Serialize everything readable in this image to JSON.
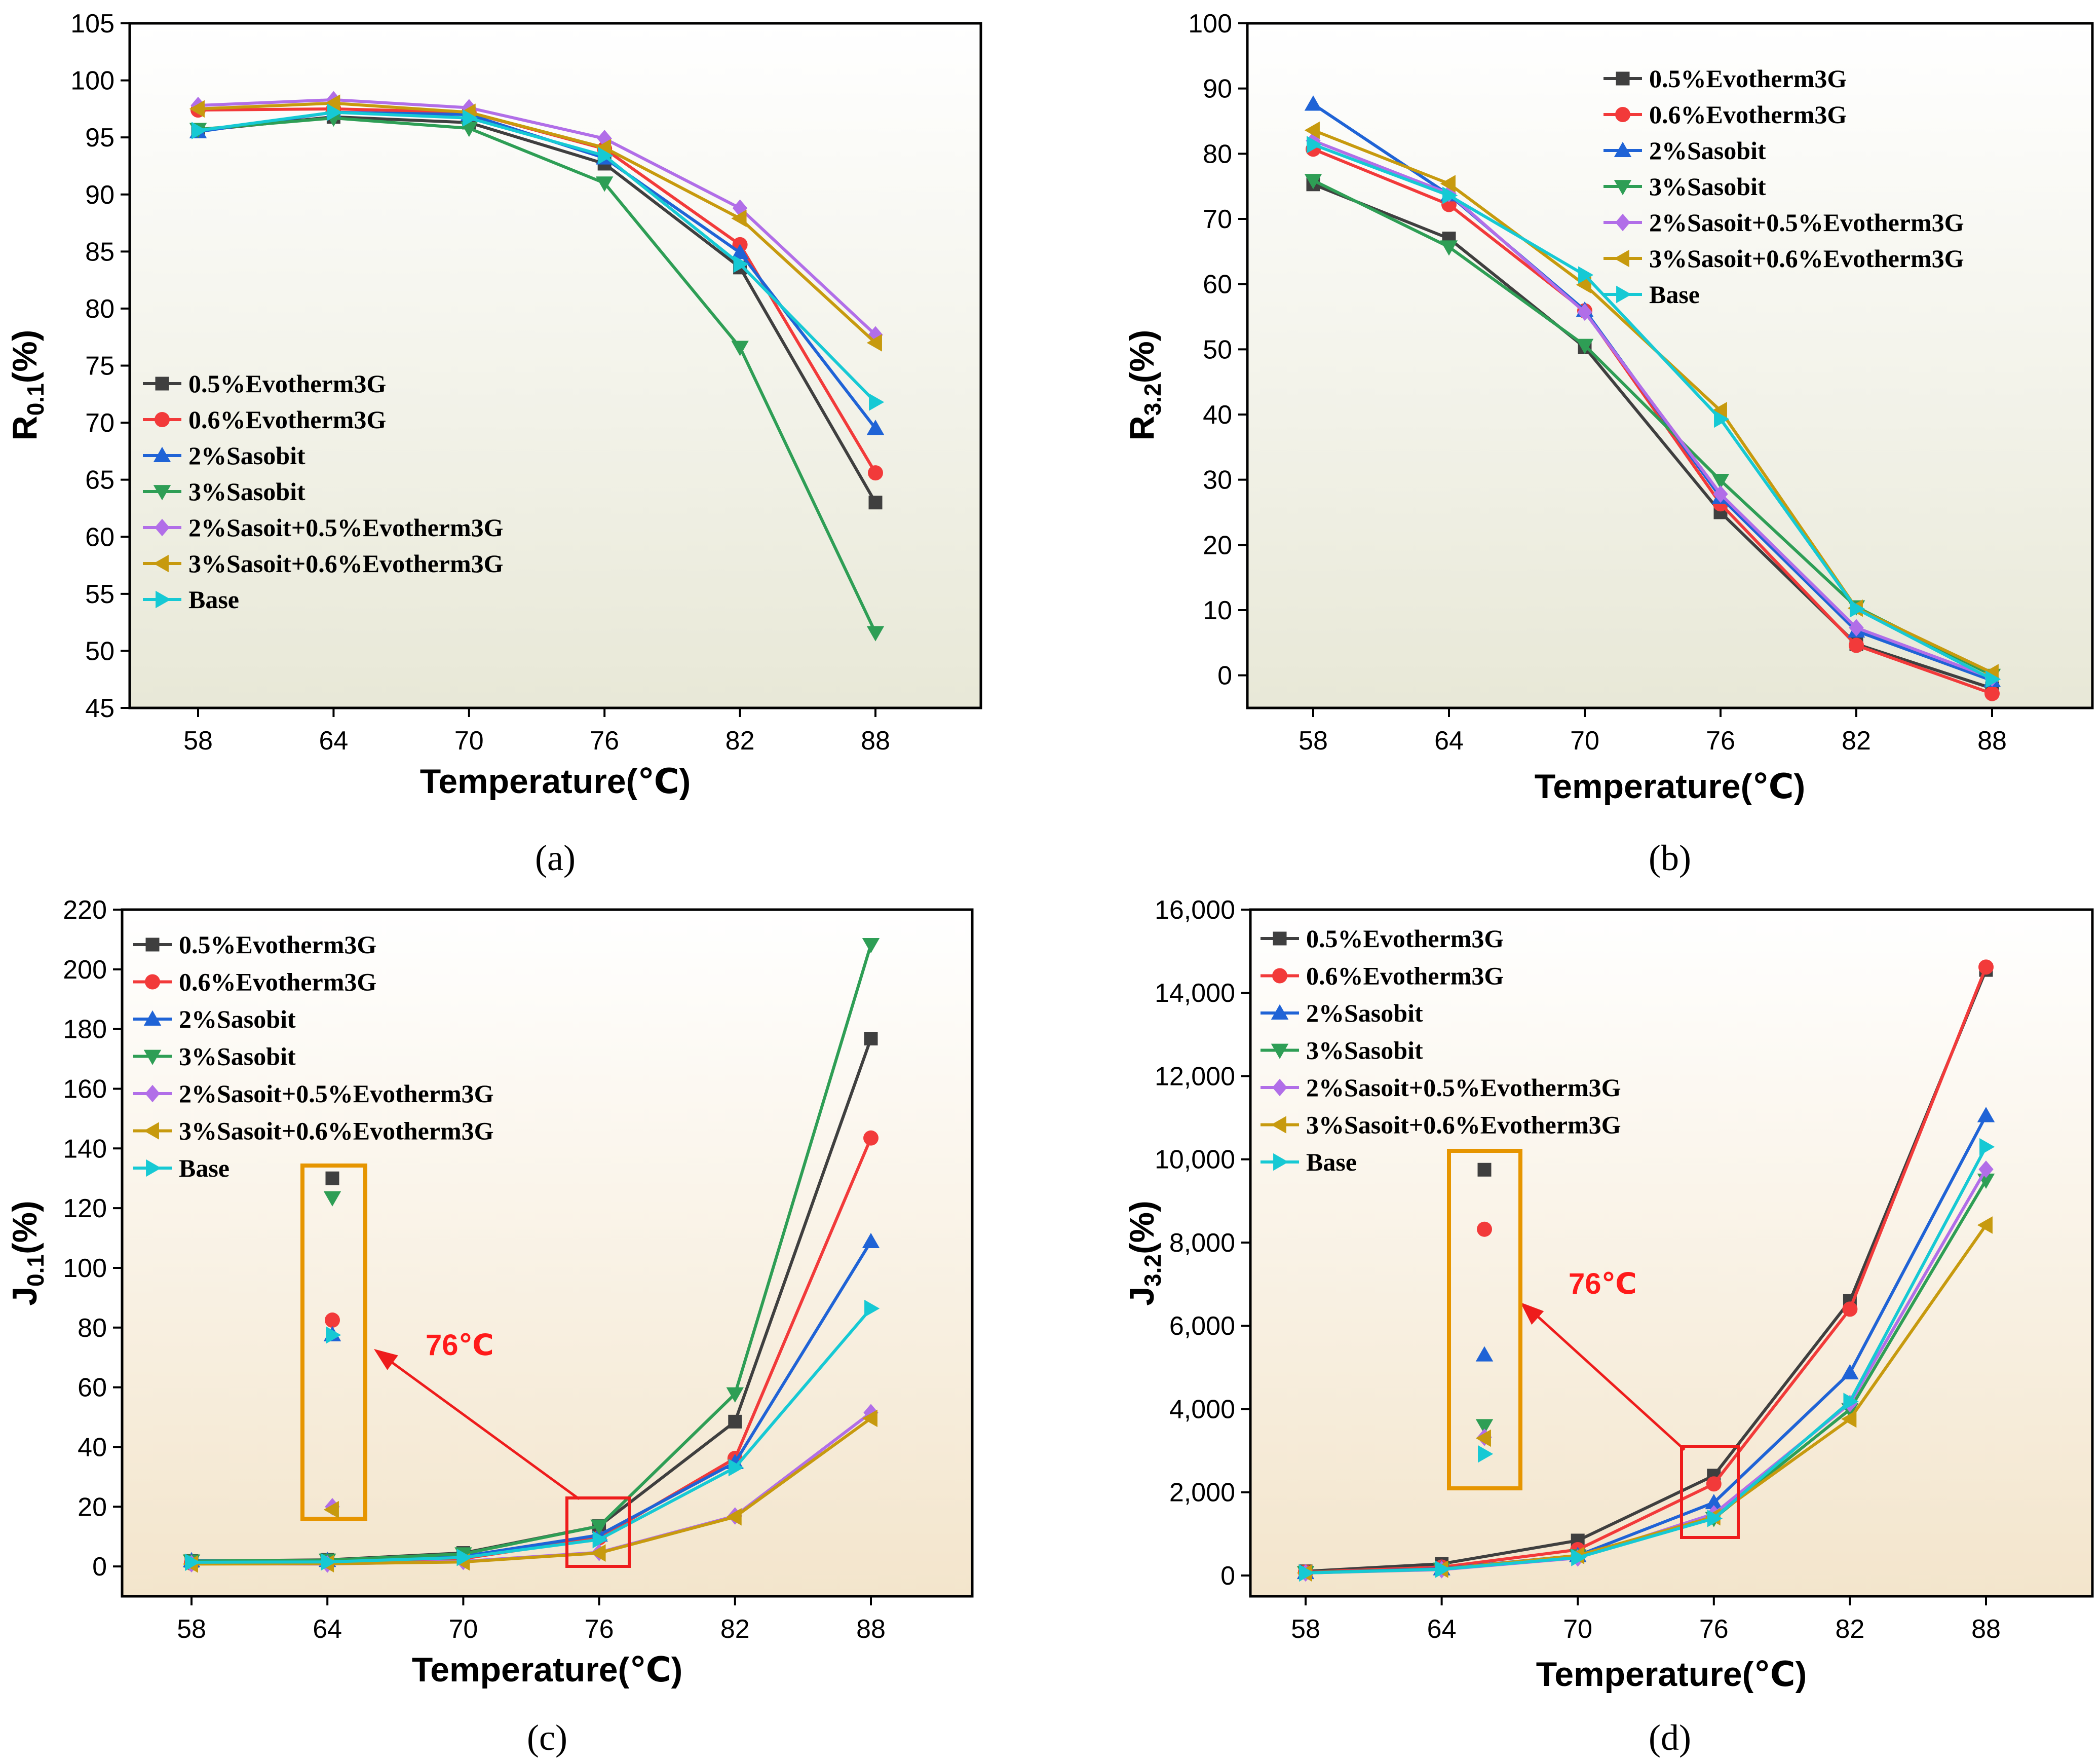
{
  "chart_data": [
    {
      "type": "line",
      "panel": "a",
      "caption": "(a)",
      "categories": [
        "58",
        "64",
        "70",
        "76",
        "82",
        "88"
      ],
      "ylabel_main": "R",
      "ylabel_sub": "0.1",
      "ylabel_unit": "(%)",
      "xlabel": "Temperature(℃)",
      "ylim": [
        45,
        105
      ],
      "yticks": [
        "45",
        "50",
        "55",
        "60",
        "65",
        "70",
        "75",
        "80",
        "85",
        "90",
        "95",
        "100",
        "105"
      ],
      "legend": "center-left",
      "series": [
        {
          "name": "0.5%Evotherm3G",
          "values": [
            95.6,
            96.8,
            96.3,
            92.7,
            83.6,
            63.0
          ]
        },
        {
          "name": "0.6%Evotherm3G",
          "values": [
            97.4,
            97.5,
            97.2,
            94.0,
            85.6,
            65.6
          ]
        },
        {
          "name": "2%Sasobit",
          "values": [
            95.5,
            97.2,
            97.0,
            93.2,
            84.9,
            69.5
          ]
        },
        {
          "name": "3%Sasobit",
          "values": [
            95.7,
            96.7,
            95.8,
            91.0,
            76.6,
            51.6
          ]
        },
        {
          "name": "2%Sasoit+0.5%Evotherm3G",
          "values": [
            97.8,
            98.3,
            97.6,
            94.9,
            88.8,
            77.7
          ]
        },
        {
          "name": "3%Sasoit+0.6%Evotherm3G",
          "values": [
            97.5,
            98.0,
            97.2,
            94.1,
            87.9,
            77.0
          ]
        },
        {
          "name": "Base",
          "values": [
            95.6,
            97.2,
            96.7,
            93.4,
            83.9,
            71.8
          ]
        }
      ]
    },
    {
      "type": "line",
      "panel": "b",
      "caption": "(b)",
      "categories": [
        "58",
        "64",
        "70",
        "76",
        "82",
        "88"
      ],
      "ylabel_main": "R",
      "ylabel_sub": "3.2",
      "ylabel_unit": "(%)",
      "xlabel": "Temperature(℃)",
      "ylim": [
        -5,
        100
      ],
      "yticks": [
        "0",
        "10",
        "20",
        "30",
        "40",
        "50",
        "60",
        "70",
        "80",
        "90",
        "100"
      ],
      "legend": "top-right",
      "series": [
        {
          "name": "0.5%Evotherm3G",
          "values": [
            75.3,
            67.0,
            50.3,
            25.0,
            4.8,
            -2.0
          ]
        },
        {
          "name": "0.6%Evotherm3G",
          "values": [
            80.7,
            72.2,
            55.9,
            26.3,
            4.6,
            -2.8
          ]
        },
        {
          "name": "2%Sasobit",
          "values": [
            87.6,
            73.7,
            56.0,
            27.3,
            6.8,
            -0.8
          ]
        },
        {
          "name": "3%Sasobit",
          "values": [
            75.9,
            65.7,
            50.6,
            29.9,
            10.5,
            0.0
          ]
        },
        {
          "name": "2%Sasoit+0.5%Evotherm3G",
          "values": [
            82.0,
            73.9,
            55.7,
            27.8,
            7.3,
            -0.4
          ]
        },
        {
          "name": "3%Sasoit+0.6%Evotherm3G",
          "values": [
            83.6,
            75.4,
            59.9,
            40.6,
            10.3,
            0.4
          ]
        },
        {
          "name": "Base",
          "values": [
            81.4,
            73.6,
            61.4,
            39.3,
            10.2,
            -0.6
          ]
        }
      ]
    },
    {
      "type": "line",
      "panel": "c",
      "caption": "(c)",
      "categories": [
        "58",
        "64",
        "70",
        "76",
        "82",
        "88"
      ],
      "ylabel_main": "J",
      "ylabel_sub": "0.1",
      "ylabel_unit": "(%)",
      "xlabel": "Temperature(℃)",
      "ylim": [
        -10,
        220
      ],
      "yticks": [
        "0",
        "20",
        "40",
        "60",
        "80",
        "100",
        "120",
        "140",
        "160",
        "180",
        "200",
        "220"
      ],
      "legend": "top-left",
      "series": [
        {
          "name": "0.5%Evotherm3G",
          "values": [
            1.8,
            2.2,
            4.5,
            13.5,
            48.5,
            176.8
          ]
        },
        {
          "name": "0.6%Evotherm3G",
          "values": [
            1.1,
            1.5,
            2.6,
            9.6,
            36.2,
            143.5
          ]
        },
        {
          "name": "2%Sasobit",
          "values": [
            1.9,
            2.0,
            3.4,
            10.5,
            34.8,
            108.8
          ]
        },
        {
          "name": "3%Sasobit",
          "values": [
            1.8,
            2.1,
            4.2,
            13.5,
            57.8,
            208.3
          ]
        },
        {
          "name": "2%Sasoit+0.5%Evotherm3G",
          "values": [
            0.9,
            0.8,
            1.7,
            4.7,
            16.9,
            51.5
          ]
        },
        {
          "name": "3%Sasoit+0.6%Evotherm3G",
          "values": [
            0.8,
            0.9,
            1.5,
            4.5,
            16.6,
            49.6
          ]
        },
        {
          "name": "Base",
          "values": [
            1.4,
            1.5,
            3.0,
            9.0,
            33.1,
            86.4
          ]
        }
      ],
      "inset_label": "76℃",
      "inset_values": [
        130.0,
        82.5,
        77.6,
        123.5,
        20.0,
        19.0,
        77.5
      ]
    },
    {
      "type": "line",
      "panel": "d",
      "caption": "(d)",
      "categories": [
        "58",
        "64",
        "70",
        "76",
        "82",
        "88"
      ],
      "ylabel_main": "J",
      "ylabel_sub": "3.2",
      "ylabel_unit": "(%)",
      "xlabel": "Temperature(℃)",
      "ylim": [
        -500,
        16000
      ],
      "yticks": [
        "0",
        "2,000",
        "4,000",
        "6,000",
        "8,000",
        "10,000",
        "12,000",
        "14,000",
        "16,000"
      ],
      "legend": "top-left",
      "series": [
        {
          "name": "0.5%Evotherm3G",
          "values": [
            100,
            280,
            840,
            2400,
            6600,
            14550
          ]
        },
        {
          "name": "0.6%Evotherm3G",
          "values": [
            80,
            200,
            620,
            2200,
            6400,
            14620
          ]
        },
        {
          "name": "2%Sasobit",
          "values": [
            70,
            160,
            480,
            1750,
            4870,
            11050
          ]
        },
        {
          "name": "3%Sasobit",
          "values": [
            70,
            150,
            470,
            1370,
            3990,
            9500
          ]
        },
        {
          "name": "2%Sasoit+0.5%Evotherm3G",
          "values": [
            60,
            140,
            420,
            1480,
            4130,
            9760
          ]
        },
        {
          "name": "3%Sasoit+0.6%Evotherm3G",
          "values": [
            60,
            150,
            480,
            1410,
            3760,
            8420
          ]
        },
        {
          "name": "Base",
          "values": [
            60,
            150,
            430,
            1370,
            4180,
            10300
          ]
        }
      ],
      "inset_label": "76℃",
      "inset_values": [
        9750,
        8320,
        5300,
        3600,
        3320,
        3300,
        2920
      ]
    }
  ],
  "series_colors": [
    "#3f3f3f",
    "#f23a3a",
    "#1f63d6",
    "#2e9e55",
    "#b16ee8",
    "#c79a0e",
    "#16c9d4"
  ],
  "series_markers": [
    "square-marker",
    "circle-marker",
    "triangle-up-marker",
    "triangle-down-marker",
    "diamond-marker",
    "triangle-left-marker",
    "triangle-right-marker"
  ],
  "inset_box_color": "#e69500",
  "highlight_color": "#ee1c1c"
}
